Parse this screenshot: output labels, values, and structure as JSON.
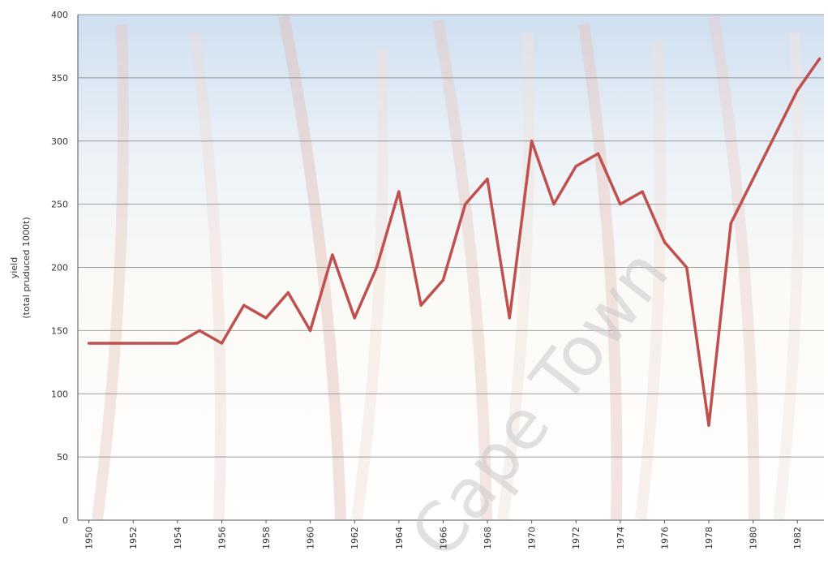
{
  "chart_data": {
    "type": "line",
    "title": "",
    "xlabel": "",
    "ylabel_line1": "yield",
    "ylabel_line2": "(total pruduced 1000t)",
    "xlim": [
      1949.5,
      1983.2
    ],
    "ylim": [
      0,
      400
    ],
    "yticks": [
      "0",
      "50",
      "100",
      "150",
      "200",
      "250",
      "300",
      "350",
      "400"
    ],
    "xticks": [
      "1950",
      "1952",
      "1954",
      "1956",
      "1958",
      "1960",
      "1962",
      "1964",
      "1966",
      "1968",
      "1970",
      "1972",
      "1974",
      "1976",
      "1978",
      "1980",
      "1982"
    ],
    "grid": true,
    "series": [
      {
        "color": "#c0504d",
        "x": [
          1950,
          1951,
          1952,
          1953,
          1954,
          1955,
          1956,
          1957,
          1958,
          1959,
          1960,
          1961,
          1962,
          1963,
          1964,
          1965,
          1966,
          1967,
          1968,
          1969,
          1970,
          1971,
          1972,
          1973,
          1974,
          1975,
          1976,
          1977,
          1978,
          1979,
          1980,
          1981,
          1982,
          1983
        ],
        "y": [
          140,
          140,
          140,
          140,
          140,
          150,
          140,
          170,
          160,
          180,
          150,
          210,
          160,
          200,
          260,
          170,
          190,
          250,
          270,
          160,
          300,
          250,
          280,
          290,
          250,
          260,
          220,
          200,
          75,
          235,
          270,
          305,
          340,
          365
        ]
      }
    ]
  },
  "watermark": {
    "text": "Cape Town"
  },
  "colors": {
    "sky": "#dde8f3",
    "grid": "#7f7f7f",
    "line": "#c0504d"
  }
}
